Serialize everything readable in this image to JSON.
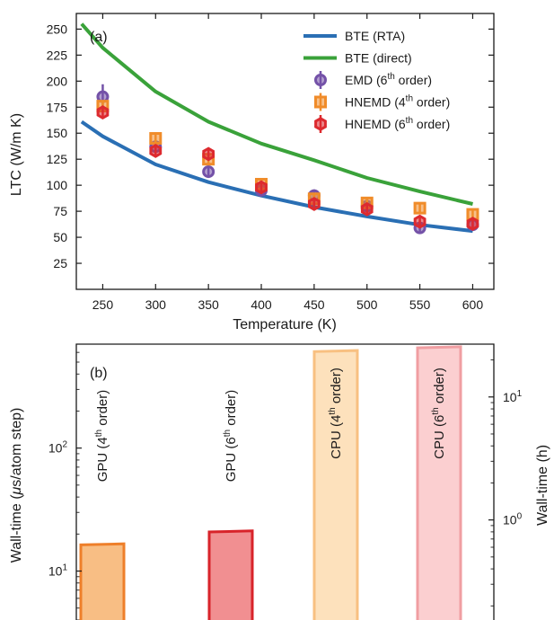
{
  "chart_data": [
    {
      "type": "line",
      "panel_label": "(a)",
      "xlabel": "Temperature (K)",
      "ylabel": "LTC (W/m K)",
      "xlim": [
        225,
        620
      ],
      "ylim": [
        0,
        265
      ],
      "xticks": [
        250,
        300,
        350,
        400,
        450,
        500,
        550,
        600
      ],
      "yticks": [
        25,
        50,
        75,
        100,
        125,
        150,
        175,
        200,
        225,
        250
      ],
      "legend_position": "top-right",
      "grid": false,
      "series": [
        {
          "name": "BTE (RTA)",
          "kind": "line",
          "color": "#2a6fb4",
          "x": [
            230,
            250,
            300,
            350,
            400,
            450,
            500,
            550,
            600
          ],
          "y": [
            161,
            147,
            120,
            103,
            90,
            79,
            70,
            62,
            56
          ]
        },
        {
          "name": "BTE (direct)",
          "kind": "line",
          "color": "#3aa23a",
          "x": [
            230,
            250,
            300,
            350,
            400,
            450,
            500,
            550,
            600
          ],
          "y": [
            255,
            232,
            190,
            161,
            140,
            124,
            107,
            94,
            82
          ]
        },
        {
          "name": "EMD (6",
          "sup": "th",
          "name_end": " order)",
          "kind": "circle",
          "color": "#7452a8",
          "x": [
            250,
            300,
            350,
            400,
            450,
            500,
            550,
            600
          ],
          "y": [
            185,
            137,
            113,
            95,
            90,
            80,
            59,
            62
          ],
          "err": [
            12,
            6,
            6,
            4,
            6,
            5,
            4,
            5
          ]
        },
        {
          "name": "HNEMD (4",
          "sup": "th",
          "name_end": " order)",
          "kind": "square",
          "color": "#f08c2a",
          "x": [
            250,
            300,
            350,
            400,
            450,
            500,
            550,
            600
          ],
          "y": [
            176,
            145,
            125,
            101,
            87,
            83,
            78,
            72
          ],
          "err": [
            5,
            6,
            5,
            4,
            4,
            4,
            4,
            4
          ]
        },
        {
          "name": "HNEMD (6",
          "sup": "th",
          "name_end": " order)",
          "kind": "hexagon",
          "color": "#dd2a2f",
          "x": [
            250,
            300,
            350,
            400,
            450,
            500,
            550,
            600
          ],
          "y": [
            170,
            133,
            130,
            98,
            82,
            77,
            65,
            63
          ],
          "err": [
            5,
            5,
            5,
            4,
            4,
            4,
            4,
            4
          ]
        }
      ]
    },
    {
      "type": "bar",
      "panel_label": "(b)",
      "yscale": "log",
      "ylabel_left_pre": "Wall-time (",
      "ylabel_left_mu": "μ",
      "ylabel_left_post": "s/atom step)",
      "ylabel_right": "Wall-time (h)",
      "ylim_left": [
        4,
        700
      ],
      "left_ticks": [
        {
          "value": 10,
          "base": "10",
          "exp": "1"
        },
        {
          "value": 100,
          "base": "10",
          "exp": "2"
        }
      ],
      "right_ticks": [
        {
          "value": 1,
          "base": "10",
          "exp": "0"
        },
        {
          "value": 10,
          "base": "10",
          "exp": "1"
        }
      ],
      "right_scale_factor": 0.0384,
      "bars": [
        {
          "pre": "GPU (4",
          "sup": "th",
          "post": " order)",
          "value": 16.5,
          "fill": "#f8be84",
          "stroke": "#ee7f2a"
        },
        {
          "pre": "GPU (6",
          "sup": "th",
          "post": " order)",
          "value": 21,
          "fill": "#f18f91",
          "stroke": "#d8232a"
        },
        {
          "pre": "CPU (4",
          "sup": "th",
          "post": " order)",
          "value": 615,
          "fill": "#fde1bc",
          "stroke": "#f8c081"
        },
        {
          "pre": "CPU (6",
          "sup": "th",
          "post": " order)",
          "value": 660,
          "fill": "#fbcfd0",
          "stroke": "#f09ea2"
        }
      ]
    }
  ]
}
